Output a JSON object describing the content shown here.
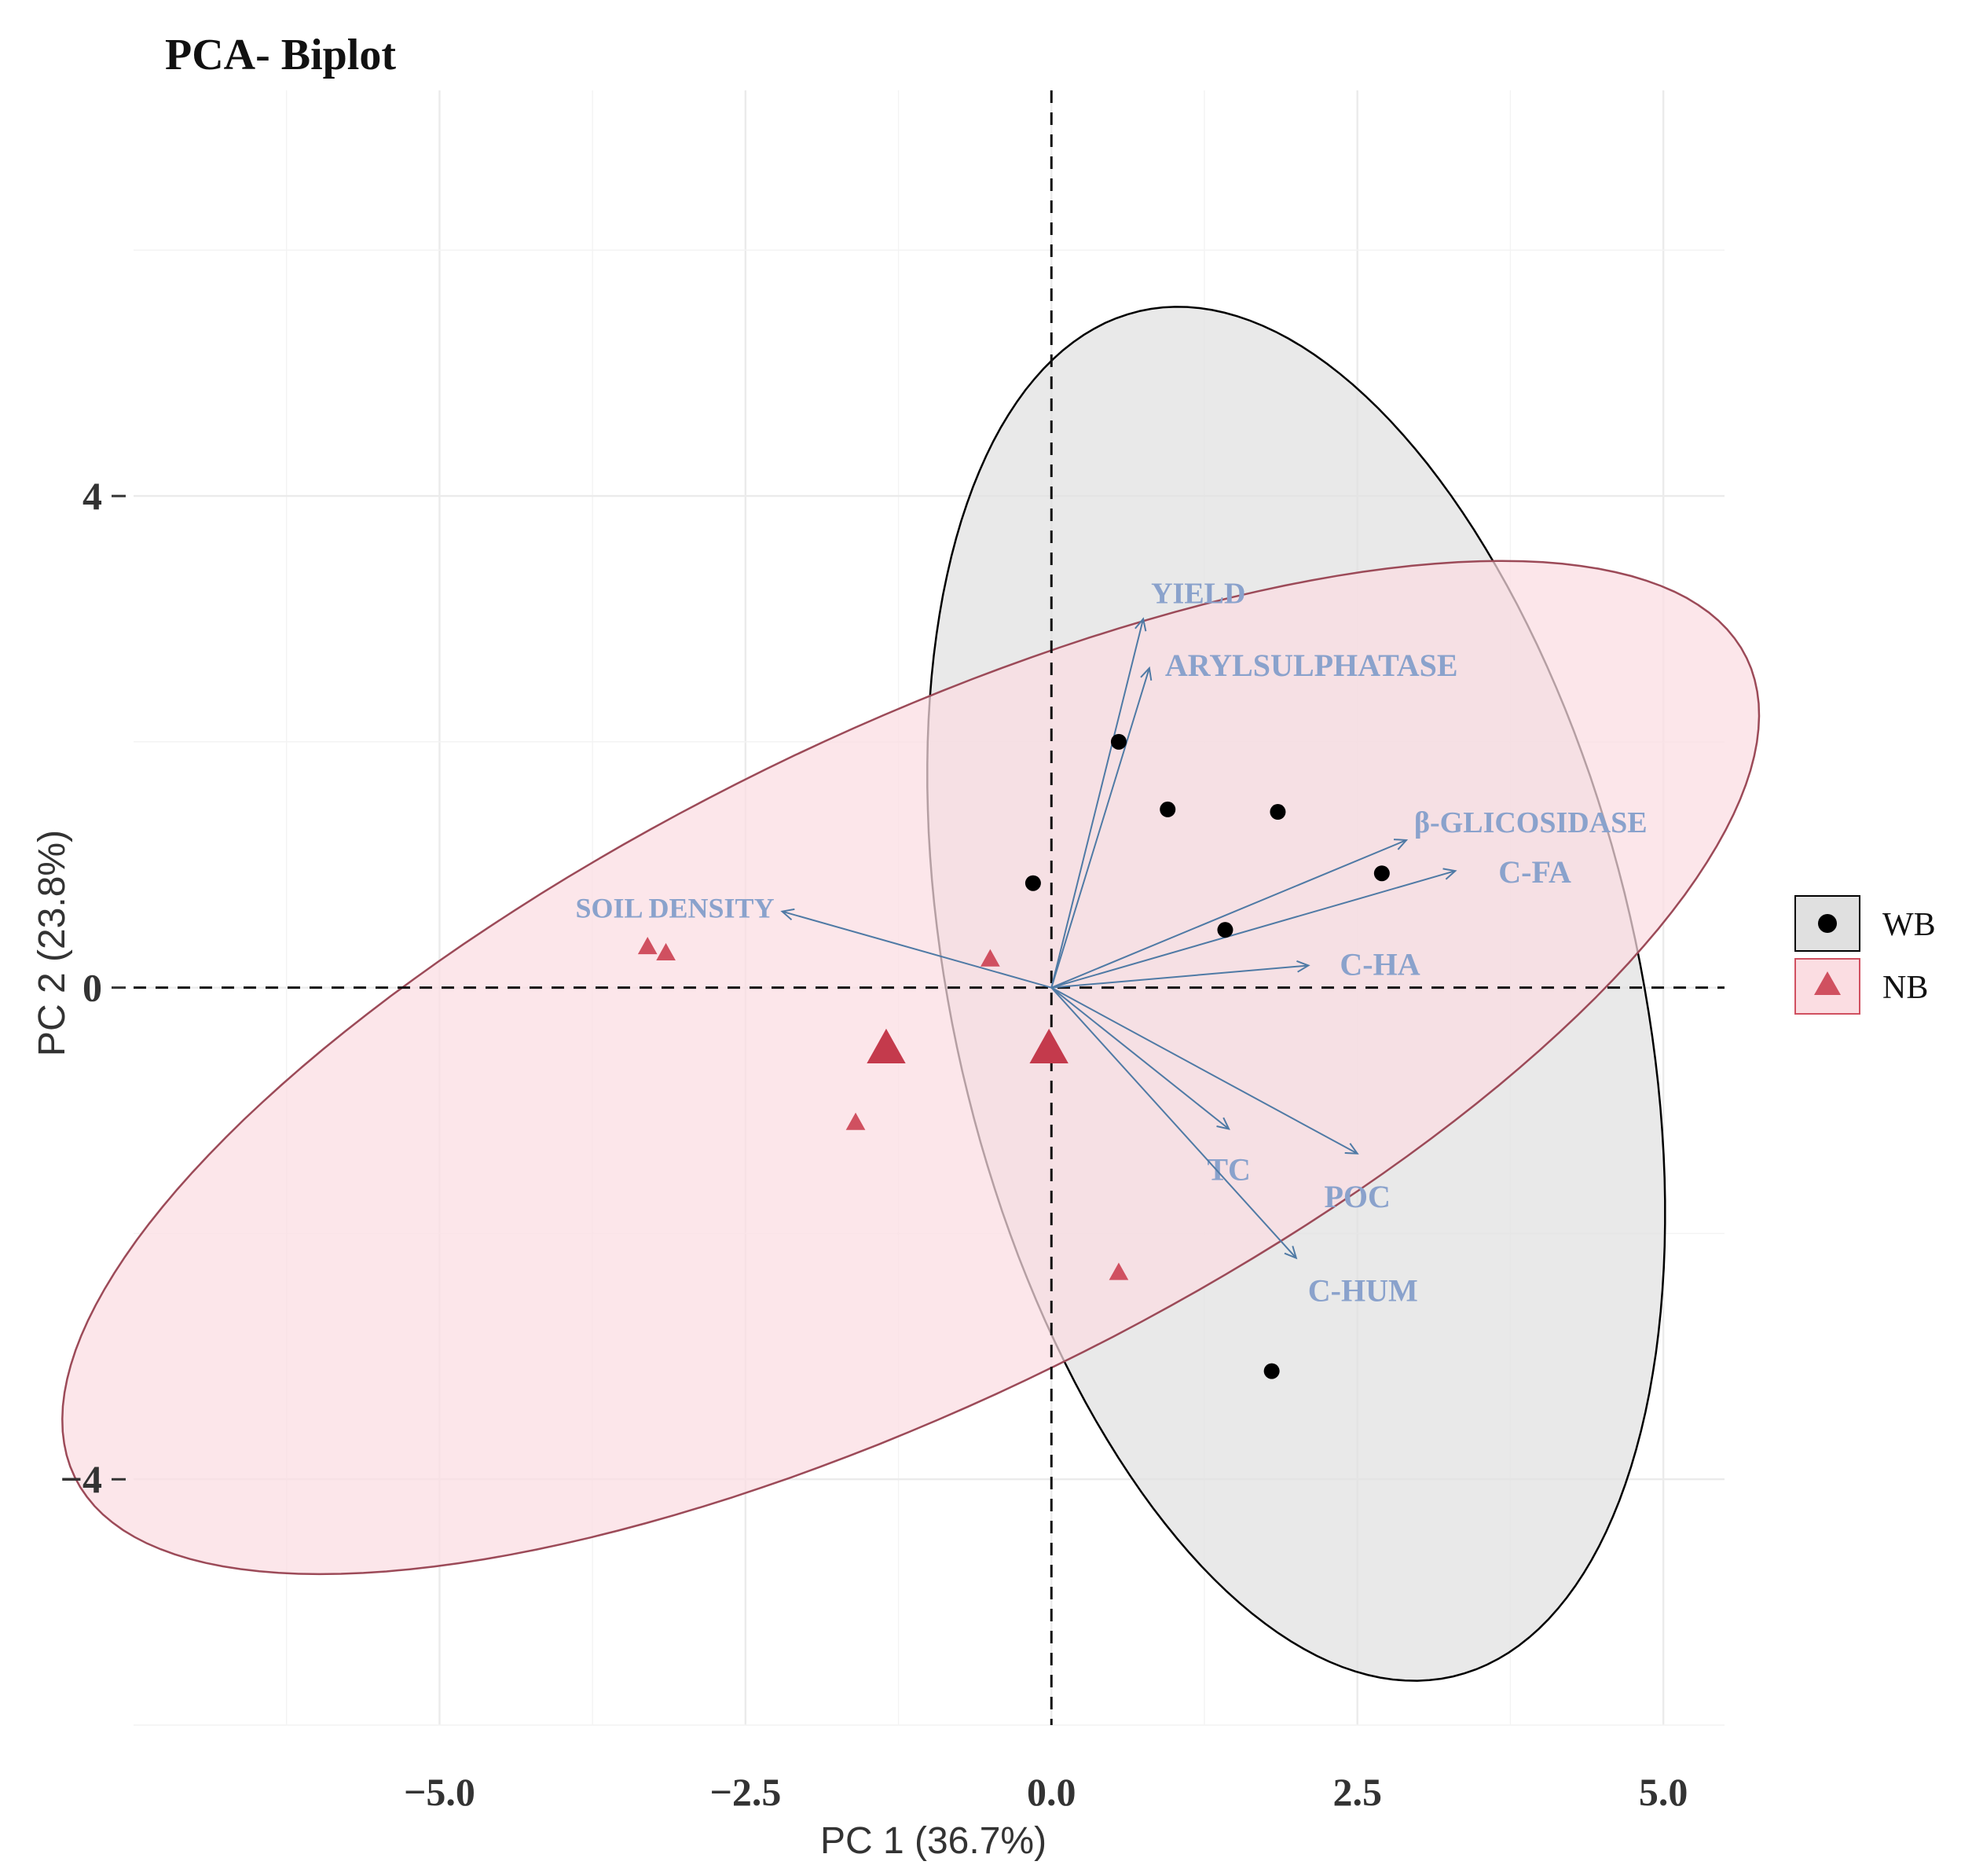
{
  "chart_data": {
    "type": "scatter",
    "subtype": "pca-biplot",
    "title": "PCA- Biplot",
    "xlabel": "PC 1 (36.7%)",
    "ylabel": "PC 2 (23.8%)",
    "xlim": [
      -7.5,
      5.5
    ],
    "ylim": [
      -6,
      7.3
    ],
    "xticks": [
      -5.0,
      -2.5,
      0.0,
      2.5,
      5.0
    ],
    "xtick_labels": [
      "−5.0",
      "−2.5",
      "0.0",
      "2.5",
      "5.0"
    ],
    "yticks": [
      -4,
      0,
      4
    ],
    "ytick_labels": [
      "−4",
      "0",
      "4"
    ],
    "grid": true,
    "legend": {
      "position": "right",
      "items": [
        {
          "name": "WB",
          "marker": "circle",
          "color": "#000000",
          "fill": "#e0e0e0"
        },
        {
          "name": "NB",
          "marker": "triangle",
          "color": "#d05060",
          "fill": "#fbdde2"
        }
      ]
    },
    "series": [
      {
        "name": "WB",
        "marker": "circle",
        "color": "#000000",
        "points": [
          [
            0.55,
            2.0
          ],
          [
            0.95,
            1.45
          ],
          [
            1.85,
            1.43
          ],
          [
            -0.15,
            0.85
          ],
          [
            2.7,
            0.93
          ],
          [
            1.42,
            0.47
          ],
          [
            1.8,
            -3.12
          ]
        ],
        "ellipse": {
          "cx": 2.0,
          "cy": -0.05,
          "rx": 5.7,
          "ry": 2.8,
          "angle_deg": 103,
          "fill": "#e0e0e0",
          "stroke": "#000000"
        }
      },
      {
        "name": "NB",
        "marker": "triangle",
        "color": "#d05060",
        "points": [
          [
            -3.3,
            0.33
          ],
          [
            -3.15,
            0.28
          ],
          [
            -0.5,
            0.23
          ],
          [
            -1.6,
            -1.1
          ],
          [
            0.55,
            -2.32
          ]
        ],
        "centroid_points": [
          [
            -1.35,
            -0.5
          ],
          [
            -0.02,
            -0.5
          ]
        ],
        "ellipse": {
          "cx": -1.15,
          "cy": -0.65,
          "rx": 7.6,
          "ry": 2.7,
          "angle_deg": 26,
          "fill": "#fbdde2",
          "stroke": "#9c4a58"
        }
      }
    ],
    "loadings": [
      {
        "name": "YIELD",
        "x": 0.75,
        "y": 3.0
      },
      {
        "name": "ARYLSULPHATASE",
        "x": 0.8,
        "y": 2.6
      },
      {
        "name": "β-GLICOSIDASE",
        "x": 2.9,
        "y": 1.2
      },
      {
        "name": "C-FA",
        "x": 3.3,
        "y": 0.95
      },
      {
        "name": "C-HA",
        "x": 2.1,
        "y": 0.18
      },
      {
        "name": "SOIL DENSITY",
        "x": -2.2,
        "y": 0.62
      },
      {
        "name": "TC",
        "x": 1.45,
        "y": -1.15
      },
      {
        "name": "POC",
        "x": 2.5,
        "y": -1.35
      },
      {
        "name": "C-HUM",
        "x": 2.0,
        "y": -2.2
      }
    ]
  }
}
